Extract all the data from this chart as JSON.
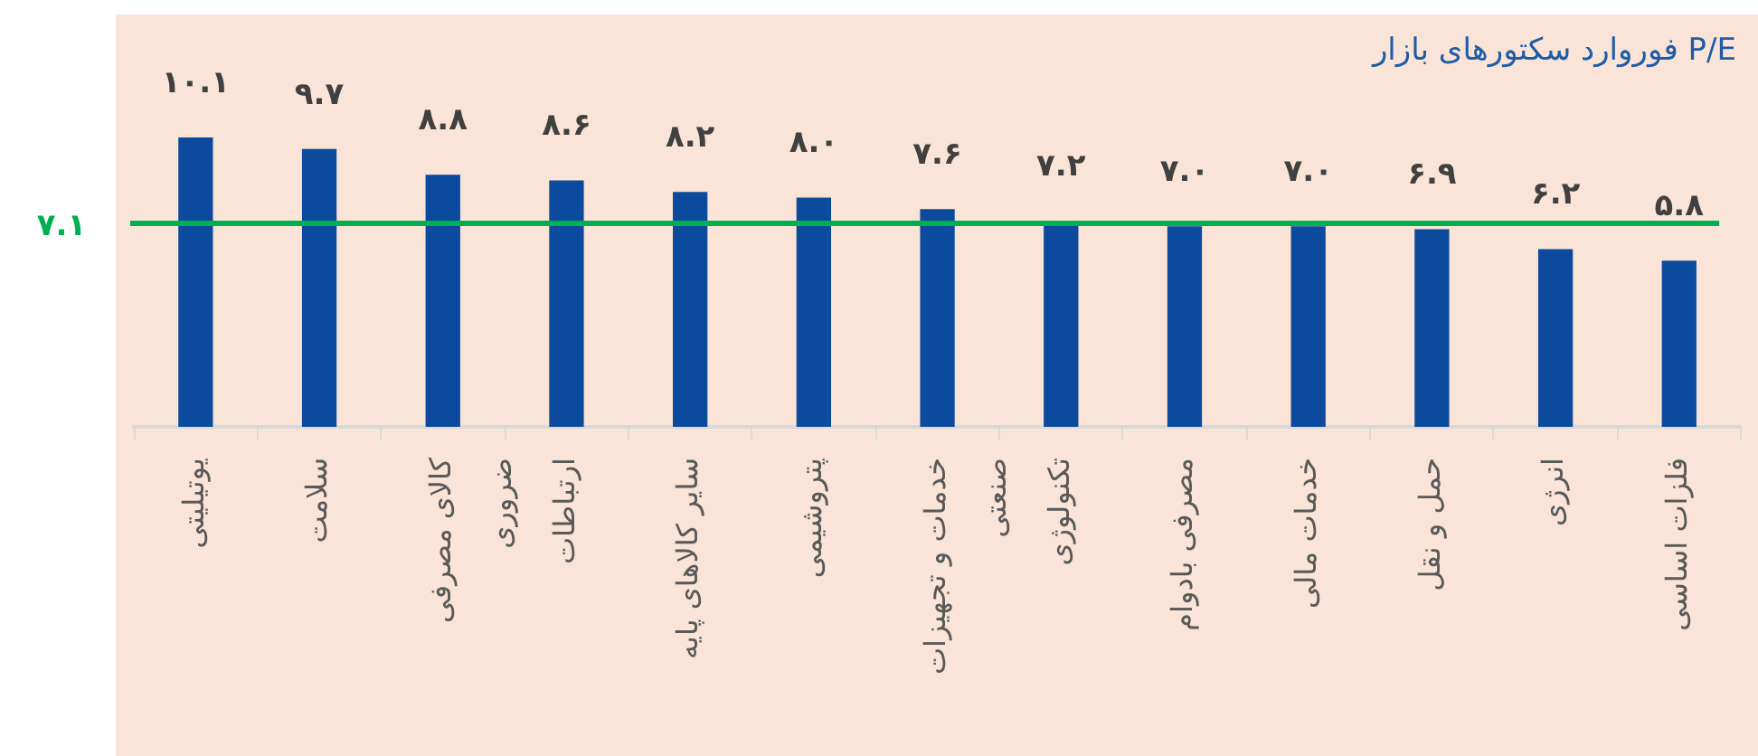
{
  "chart_data": {
    "type": "bar",
    "title": "P/E فوروارد سکتورهای بازار",
    "categories": [
      "یوتیلیتی",
      "سلامت",
      "کالای مصرفی ضروری",
      "ارتباطات",
      "سایر کالاهای پایه",
      "پتروشیمی",
      "خدمات و تجهیزات صنعتی",
      "تکنولوژی",
      "مصرفی بادوام",
      "خدمات مالی",
      "حمل و نقل",
      "انرژی",
      "فلزات اساسی"
    ],
    "values": [
      10.1,
      9.7,
      8.8,
      8.6,
      8.2,
      8.0,
      7.6,
      7.2,
      7.0,
      7.0,
      6.9,
      6.2,
      5.8
    ],
    "value_labels": [
      "۱۰.۱",
      "۹.۷",
      "۸.۸",
      "۸.۶",
      "۸.۲",
      "۸.۰",
      "۷.۶",
      "۷.۲",
      "۷.۰",
      "۷.۰",
      "۶.۹",
      "۶.۲",
      "۵.۸"
    ],
    "color": "#0b4a9c",
    "ref_lines": [
      {
        "axis": "y",
        "value": 7.1,
        "label": "۷.۱",
        "color": "#00b050"
      }
    ]
  }
}
